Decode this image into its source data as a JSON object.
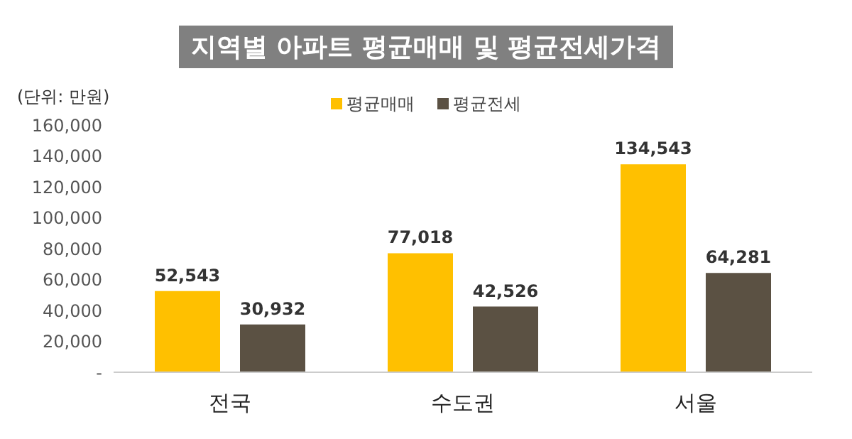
{
  "chart_data": {
    "type": "bar",
    "title": "지역별 아파트 평균매매 및 평균전세가격",
    "annotations": [
      "(단위: 만원)"
    ],
    "categories": [
      "전국",
      "수도권",
      "서울"
    ],
    "series": [
      {
        "name": "평균매매",
        "color": "#ffc000",
        "values": [
          52543,
          77018,
          134543
        ],
        "value_labels": [
          "52,543",
          "77,018",
          "134,543"
        ]
      },
      {
        "name": "평균전세",
        "color": "#5b5143",
        "values": [
          30932,
          42526,
          64281
        ],
        "value_labels": [
          "30,932",
          "42,526",
          "64,281"
        ]
      }
    ],
    "ylim": [
      0,
      160000
    ],
    "yticks": [
      {
        "value": 0,
        "label": "-"
      },
      {
        "value": 20000,
        "label": "20,000"
      },
      {
        "value": 40000,
        "label": "40,000"
      },
      {
        "value": 60000,
        "label": "60,000"
      },
      {
        "value": 80000,
        "label": "80,000"
      },
      {
        "value": 100000,
        "label": "100,000"
      },
      {
        "value": 120000,
        "label": "120,000"
      },
      {
        "value": 140000,
        "label": "140,000"
      },
      {
        "value": 160000,
        "label": "160,000"
      }
    ],
    "legend": "top",
    "grid": false
  }
}
